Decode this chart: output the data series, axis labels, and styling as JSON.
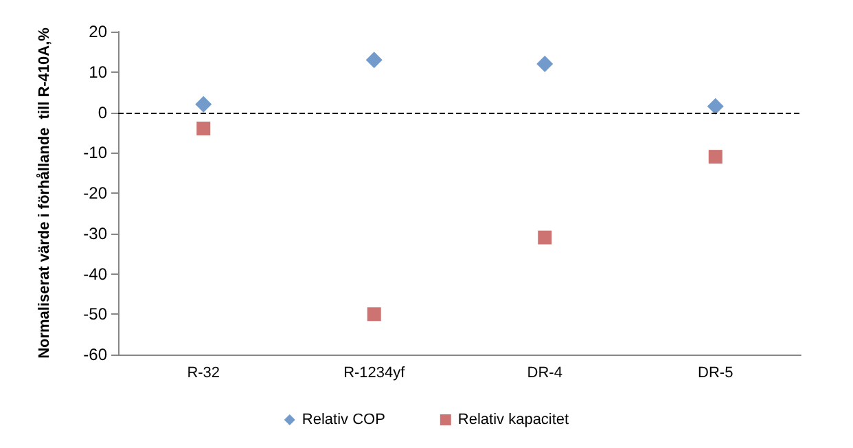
{
  "chart_data": {
    "type": "scatter",
    "ylabel": "Normaliserat värde i förhållande  till R-410A,%",
    "categories": [
      "R-32",
      "R-1234yf",
      "DR-4",
      "DR-5"
    ],
    "series": [
      {
        "name": "Relativ COP",
        "color": "#4f81bd",
        "marker": "diamond",
        "values": [
          2,
          13,
          12,
          1.5
        ]
      },
      {
        "name": "Relativ kapacitet",
        "color": "#c0504d",
        "marker": "square",
        "values": [
          -4,
          -50,
          -31,
          -11
        ]
      }
    ],
    "ylim": [
      -60,
      20
    ],
    "yticks": [
      -60,
      -50,
      -40,
      -30,
      -20,
      -10,
      0,
      10,
      20
    ],
    "grid": false,
    "legend": "bottom",
    "ref_lines": [
      {
        "axis": "y",
        "value": 0,
        "color": "#000000",
        "line_style": "dashed"
      }
    ]
  }
}
